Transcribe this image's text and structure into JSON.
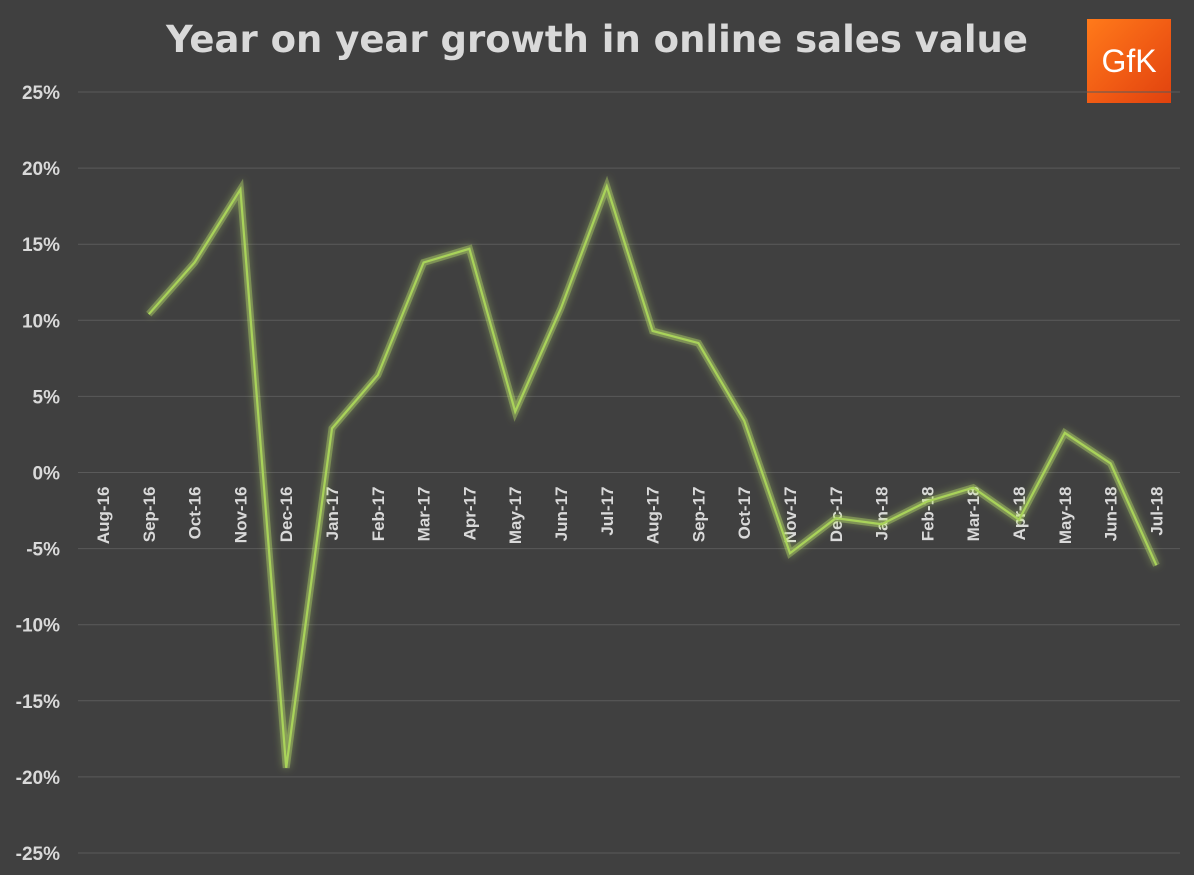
{
  "chart_data": {
    "type": "line",
    "title": "Year on year growth in online sales value",
    "categories": [
      "Aug-16",
      "Sep-16",
      "Oct-16",
      "Nov-16",
      "Dec-16",
      "Jan-17",
      "Feb-17",
      "Mar-17",
      "Apr-17",
      "May-17",
      "Jun-17",
      "Jul-17",
      "Aug-17",
      "Sep-17",
      "Oct-17",
      "Nov-17",
      "Dec-17",
      "Jan-18",
      "Feb-18",
      "Mar-18",
      "Apr-18",
      "May-18",
      "Jun-18",
      "Jul-18"
    ],
    "series": [
      {
        "name": "Year on year growth",
        "values": [
          null,
          10.4,
          13.8,
          18.6,
          -19.4,
          2.9,
          6.4,
          13.8,
          14.7,
          4.0,
          10.8,
          18.8,
          9.3,
          8.5,
          3.4,
          -5.3,
          -3.0,
          -3.4,
          -1.9,
          -1.0,
          -3.1,
          2.6,
          0.6,
          -6.1
        ]
      }
    ],
    "ylim": [
      -25,
      25
    ],
    "yticks": [
      25,
      20,
      15,
      10,
      5,
      0,
      -5,
      -10,
      -15,
      -20,
      -25
    ],
    "ytick_labels": [
      "25%",
      "20%",
      "15%",
      "10%",
      "5%",
      "0%",
      "-5%",
      "-10%",
      "-15%",
      "-20%",
      "-25%"
    ],
    "xlabel": "",
    "ylabel": "",
    "grid": true,
    "legend": "none"
  },
  "colors": {
    "background": "#404040",
    "line": "#a9d35a",
    "glow": "#c4ea6e",
    "grid": "#5a5a5a",
    "text": "#d9d9d9",
    "logo_bg": "#f05a14"
  },
  "logo": {
    "text": "GfK"
  }
}
